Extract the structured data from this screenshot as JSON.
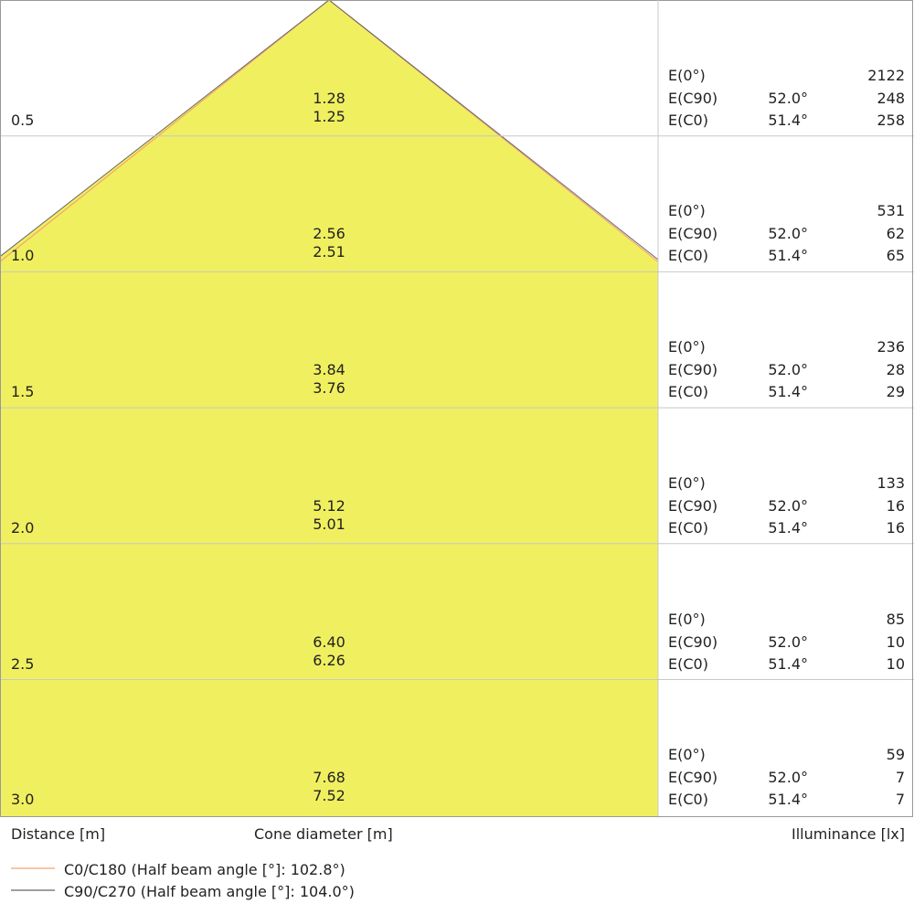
{
  "chart_data": {
    "type": "cone-diagram",
    "distance_label": "Distance [m]",
    "diameter_label": "Cone diameter [m]",
    "illuminance_label": "Illuminance [lx]",
    "fill_color": "#f0ef60",
    "series": [
      {
        "name": "C0/C180 (Half beam angle [°]: 102.8°)",
        "color": "#f4a46e"
      },
      {
        "name": "C90/C270 (Half beam angle [°]: 104.0°)",
        "color": "#666666"
      }
    ],
    "rows": [
      {
        "distance": "0.5",
        "d_c90": "1.28",
        "d_c0": "1.25",
        "e0": "2122",
        "e_c90": "248",
        "e_c0": "258"
      },
      {
        "distance": "1.0",
        "d_c90": "2.56",
        "d_c0": "2.51",
        "e0": "531",
        "e_c90": "62",
        "e_c0": "65"
      },
      {
        "distance": "1.5",
        "d_c90": "3.84",
        "d_c0": "3.76",
        "e0": "236",
        "e_c90": "28",
        "e_c0": "29"
      },
      {
        "distance": "2.0",
        "d_c90": "5.12",
        "d_c0": "5.01",
        "e0": "133",
        "e_c90": "16",
        "e_c0": "16"
      },
      {
        "distance": "2.5",
        "d_c90": "6.40",
        "d_c0": "6.26",
        "e0": "85",
        "e_c90": "10",
        "e_c0": "10"
      },
      {
        "distance": "3.0",
        "d_c90": "7.68",
        "d_c0": "7.52",
        "e0": "59",
        "e_c90": "7",
        "e_c0": "7"
      }
    ],
    "labels": {
      "e0": "E(0°)",
      "e_c90": "E(C90)",
      "e_c0": "E(C0)",
      "angle_c90": "52.0°",
      "angle_c0": "51.4°"
    }
  }
}
